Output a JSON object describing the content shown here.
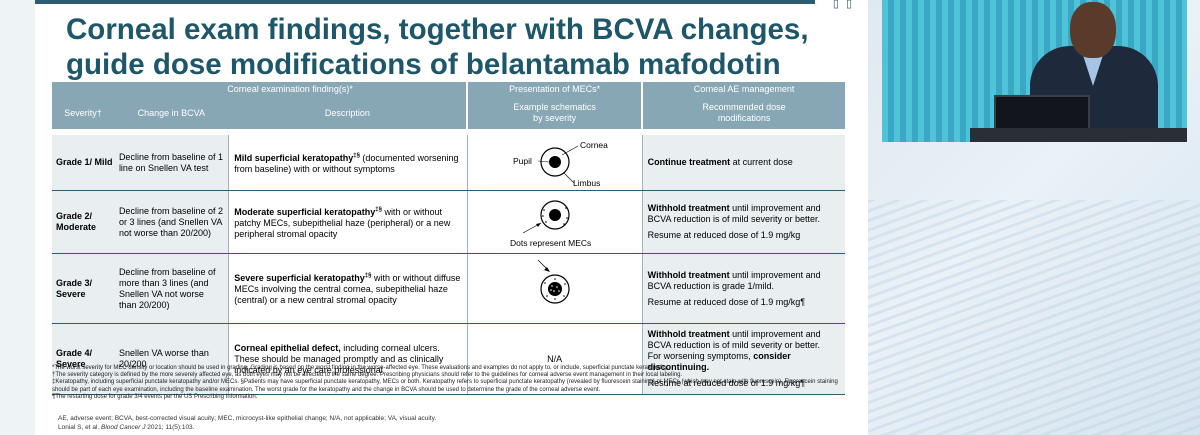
{
  "slide": {
    "title_line1": "Corneal exam findings, together with BCVA changes,",
    "title_line2": "guide dose modifications of belantamab mafodotin",
    "top_icons": "▯ ▯"
  },
  "table": {
    "group_headers": {
      "corneal": "Corneal examination finding(s)*",
      "presentation": "Presentation of MECs*",
      "management": "Corneal AE management"
    },
    "col_headers": {
      "severity": "Severity†",
      "bcva": "Change in BCVA",
      "description": "Description",
      "schematics": "Example schematics by severity",
      "dose": "Recommended dose modifications"
    },
    "rows": [
      {
        "grade": "Grade 1/ Mild",
        "bcva": "Decline from baseline of 1 line on Snellen VA test",
        "desc_bold": "Mild superficial keratopathy",
        "desc_sup": "‡§",
        "desc_rest": " (documented worsening from baseline) with or without symptoms",
        "mgmt": [
          {
            "bold": "Continue treatment",
            "rest": " at current dose"
          }
        ]
      },
      {
        "grade": "Grade 2/ Moderate",
        "bcva": "Decline from baseline of 2 or 3 lines (and Snellen VA not worse than 20/200)",
        "desc_bold": "Moderate superficial keratopathy",
        "desc_sup": "‡§",
        "desc_rest": " with or without patchy MECs, subepithelial haze (peripheral) or a new peripheral stromal opacity",
        "mgmt": [
          {
            "bold": "Withhold treatment",
            "rest": " until improvement and BCVA reduction is of mild severity or better."
          },
          {
            "bold": "",
            "rest": "Resume at reduced dose of 1.9 mg/kg"
          }
        ]
      },
      {
        "grade": "Grade 3/ Severe",
        "bcva": "Decline from baseline of more than 3 lines (and Snellen VA not worse than 20/200)",
        "desc_bold": "Severe superficial keratopathy",
        "desc_sup": "‡§",
        "desc_rest": " with or without diffuse MECs involving the central cornea, subepithelial haze (central) or a new central stromal opacity",
        "mgmt": [
          {
            "bold": "Withhold treatment",
            "rest": " until improvement and BCVA reduction is grade 1/mild."
          },
          {
            "bold": "",
            "rest": "Resume at reduced dose of 1.9 mg/kg¶"
          }
        ]
      },
      {
        "grade": "Grade 4/ Severe",
        "bcva": "Snellen VA worse than 20/200",
        "desc_bold": "Corneal epithelial defect,",
        "desc_sup": "",
        "desc_rest": " including corneal ulcers. These should be managed promptly and as clinically indicated by an eye care professional",
        "presentation": "N/A",
        "mgmt": [
          {
            "bold": "Withhold treatment",
            "rest": " until improvement and BCVA reduction is of mild severity or better."
          },
          {
            "bold": "",
            "rest": "For worsening symptoms, ",
            "bold2": "consider discontinuing."
          },
          {
            "bold": "",
            "rest": "Resume at reduced dose of 1.9 mg/kg¶"
          }
        ]
      }
    ],
    "schematic_labels": {
      "cornea": "Cornea",
      "pupil": "Pupil",
      "limbus": "Limbus",
      "dots": "Dots represent MECs"
    }
  },
  "footnotes": [
    "*The worst severity for MEC density or location should be used in grading. Grading is based on the worst finding in the worse-affected eye. These evaluations and examples do not apply to, or include, superficial punctate keratopathy.",
    "†The severity category is defined by the more severely affected eye, as both eyes may not be affected to the same degree. Prescribing physicians should refer to the guidelines for corneal adverse event management in their local labeling.",
    "‡Keratopathy, including superficial punctate keratopathy and/or MECs. §Patients may have superficial punctate keratopathy, MECs or both. Keratopathy refers to superficial punctate keratopathy (revealed by fluorescein staining) or MECs (which may not stain with fluorescein). Fluorescein staining should be part of each eye examination, including the baseline examination. The worst grade for the keratopathy and the change in BCVA should be used to determine the grade of the corneal adverse event.",
    "¶The restarting dose for grade 3/4 events per the US Prescribing Information."
  ],
  "abbreviations": "AE, adverse event; BCVA, best-corrected visual acuity; MEC, microcyst-like epithelial change; N/A, not applicable; VA, visual acuity.",
  "citation_author": "Lonial S, et al. ",
  "citation_journal": "Blood Cancer J",
  "citation_rest": " 2021; 11(5):103."
}
